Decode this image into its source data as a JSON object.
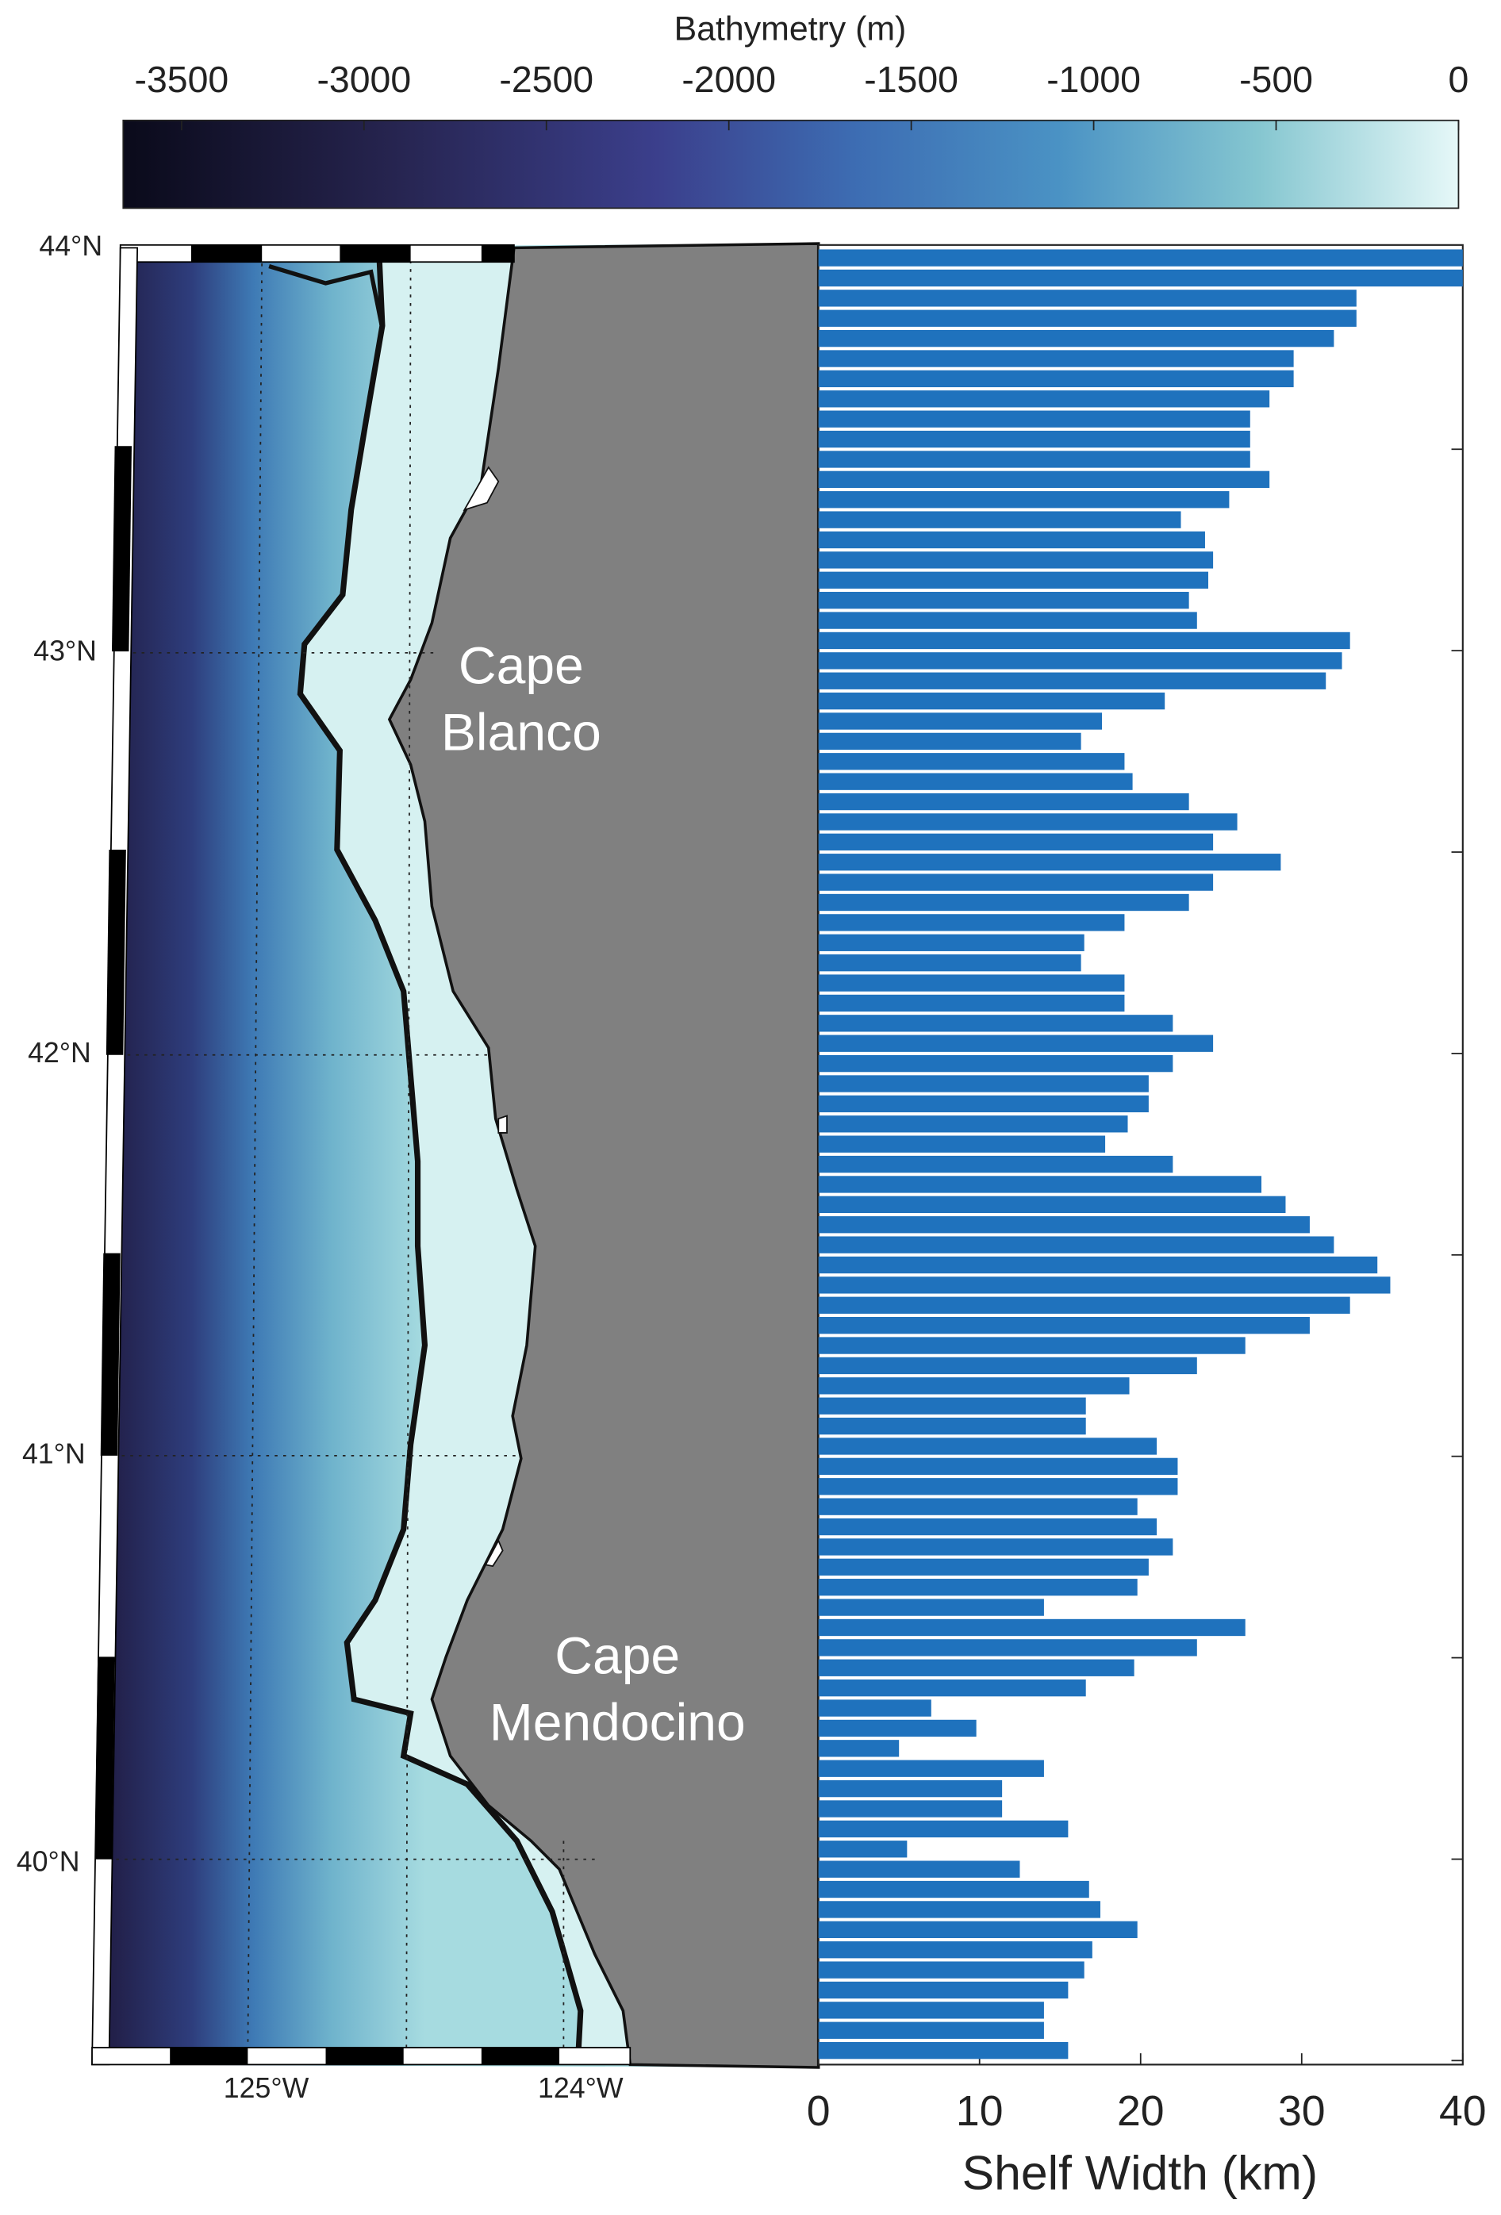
{
  "colorbar": {
    "title": "Bathymetry (m)",
    "clim": [
      -3660,
      0
    ],
    "ticks": [
      -3500,
      -3000,
      -2500,
      -2000,
      -1500,
      -1000,
      -500,
      0
    ]
  },
  "map": {
    "lat_labels": [
      "44°N",
      "43°N",
      "42°N",
      "41°N",
      "40°N"
    ],
    "lon_labels": [
      "125°W",
      "124°W"
    ],
    "annotations": [
      {
        "lines": [
          "Cape",
          "Blanco"
        ]
      },
      {
        "lines": [
          "Cape",
          "Mendocino"
        ]
      }
    ]
  },
  "chart_data": {
    "type": "bar",
    "orientation": "horizontal",
    "color": "#1f72bd",
    "xlabel": "Shelf Width (km)",
    "xlim": [
      0,
      40
    ],
    "xticks": [
      0,
      10,
      20,
      30,
      40
    ],
    "ylim": [
      39.49,
      44
    ],
    "yticks": [
      39.5,
      40,
      40.5,
      41,
      41.5,
      42,
      42.5,
      43,
      43.5
    ],
    "y": [
      43.975,
      43.925,
      43.875,
      43.825,
      43.775,
      43.725,
      43.675,
      43.625,
      43.575,
      43.525,
      43.475,
      43.425,
      43.375,
      43.325,
      43.275,
      43.225,
      43.175,
      43.125,
      43.075,
      43.025,
      42.975,
      42.925,
      42.875,
      42.825,
      42.775,
      42.725,
      42.675,
      42.625,
      42.575,
      42.525,
      42.475,
      42.425,
      42.375,
      42.325,
      42.275,
      42.225,
      42.175,
      42.125,
      42.075,
      42.025,
      41.975,
      41.925,
      41.875,
      41.825,
      41.775,
      41.725,
      41.675,
      41.625,
      41.575,
      41.525,
      41.475,
      41.425,
      41.375,
      41.325,
      41.275,
      41.225,
      41.175,
      41.125,
      41.075,
      41.025,
      40.975,
      40.925,
      40.875,
      40.825,
      40.775,
      40.725,
      40.675,
      40.625,
      40.575,
      40.525,
      40.475,
      40.425,
      40.375,
      40.325,
      40.275,
      40.225,
      40.175,
      40.125,
      40.075,
      40.025,
      39.975,
      39.925,
      39.875,
      39.825,
      39.775,
      39.725,
      39.675,
      39.625,
      39.575,
      39.525
    ],
    "values": [
      40,
      40,
      33.4,
      33.4,
      32,
      29.5,
      29.5,
      28,
      26.8,
      26.8,
      26.8,
      28,
      25.5,
      22.5,
      24,
      24.5,
      24.2,
      23,
      23.5,
      33,
      32.5,
      31.5,
      21.5,
      17.6,
      16.3,
      19,
      19.5,
      23,
      26,
      24.5,
      28.7,
      24.5,
      23,
      19,
      16.5,
      16.3,
      19,
      19,
      22,
      24.5,
      22,
      20.5,
      20.5,
      19.2,
      17.8,
      22,
      27.5,
      29,
      30.5,
      32,
      34.7,
      35.5,
      33,
      30.5,
      26.5,
      23.5,
      19.3,
      16.6,
      16.6,
      21,
      22.3,
      22.3,
      19.8,
      21,
      22,
      20.5,
      19.8,
      14,
      26.5,
      23.5,
      19.6,
      16.6,
      7,
      9.8,
      5,
      14,
      11.4,
      11.4,
      15.5,
      5.5,
      12.5,
      16.8,
      17.5,
      19.8,
      17,
      16.5,
      15.5,
      14,
      14,
      15.5
    ]
  }
}
